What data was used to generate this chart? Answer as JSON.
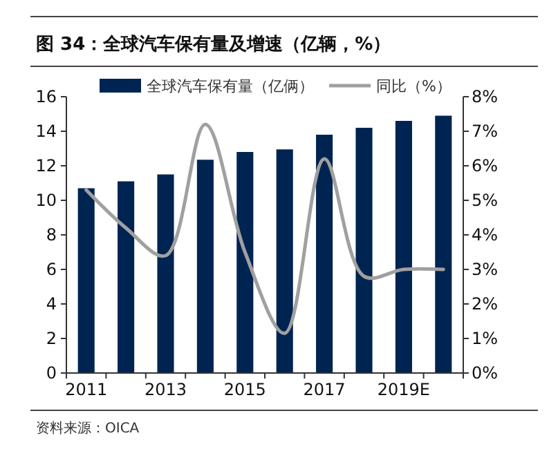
{
  "chart_data": {
    "type": "bar",
    "title": "图 34：全球汽车保有量及增速（亿辆，%）",
    "categories": [
      "2011",
      null,
      "2013",
      null,
      "2015",
      null,
      "2017",
      null,
      "2019E",
      null
    ],
    "series": [
      {
        "name": "全球汽车保有量（亿俩）",
        "color": "#002452",
        "values": [
          10.7,
          11.1,
          11.5,
          12.35,
          12.8,
          12.95,
          13.8,
          14.2,
          14.6,
          14.9
        ]
      },
      {
        "name": "同比（%）",
        "type": "line",
        "axis": "y2",
        "color": "#a0a0a0",
        "values": [
          5.3,
          4.2,
          3.4,
          7.2,
          3.5,
          1.15,
          6.2,
          2.8,
          3.0,
          3.0
        ]
      }
    ],
    "ylim": [
      0,
      16
    ],
    "yticks": [
      0,
      2,
      4,
      6,
      8,
      10,
      12,
      14,
      16
    ],
    "y2lim": [
      0,
      8
    ],
    "y2ticks": [
      {
        "value": 0,
        "label": "0%"
      },
      {
        "value": 1,
        "label": "1%"
      },
      {
        "value": 2,
        "label": "2%"
      },
      {
        "value": 3,
        "label": "3%"
      },
      {
        "value": 4,
        "label": "4%"
      },
      {
        "value": 5,
        "label": "5%"
      },
      {
        "value": 6,
        "label": "6%"
      },
      {
        "value": 7,
        "label": "7%"
      },
      {
        "value": 8,
        "label": "8%"
      }
    ],
    "legend": "top",
    "grid": false,
    "annotations": [
      "资料来源：OICA"
    ]
  }
}
